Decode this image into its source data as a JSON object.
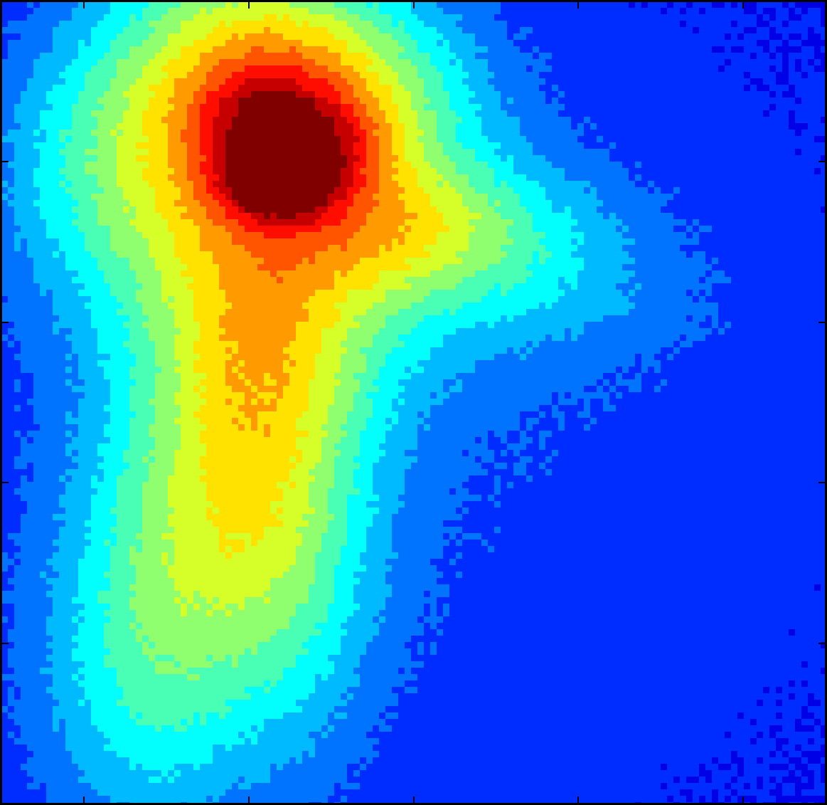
{
  "chart_data": {
    "type": "heatmap",
    "title": "",
    "xlabel": "",
    "ylabel": "",
    "colormap": "jet",
    "grid": false,
    "legend": "none",
    "xticks": [
      "",
      "",
      "",
      "",
      ""
    ],
    "yticks": [
      "",
      "",
      "",
      ""
    ],
    "blobs": [
      {
        "name": "core",
        "cx": 0.335,
        "cy": 0.225,
        "sx": 0.045,
        "sy": 0.03,
        "w": 0.45
      },
      {
        "name": "core-upper-left-arm",
        "cx": 0.315,
        "cy": 0.155,
        "sx": 0.05,
        "sy": 0.045,
        "w": 0.22
      },
      {
        "name": "core-upper-right-arm",
        "cx": 0.395,
        "cy": 0.175,
        "sx": 0.05,
        "sy": 0.04,
        "w": 0.18
      },
      {
        "name": "upper-plume",
        "cx": 0.3,
        "cy": 0.08,
        "sx": 0.12,
        "sy": 0.12,
        "w": 0.42
      },
      {
        "name": "central-halo",
        "cx": 0.33,
        "cy": 0.25,
        "sx": 0.16,
        "sy": 0.15,
        "w": 0.35
      },
      {
        "name": "right-lobe",
        "cx": 0.52,
        "cy": 0.28,
        "sx": 0.13,
        "sy": 0.06,
        "w": 0.26
      },
      {
        "name": "right-upper-lobe",
        "cx": 0.44,
        "cy": 0.12,
        "sx": 0.1,
        "sy": 0.08,
        "w": 0.18
      },
      {
        "name": "stem-upper",
        "cx": 0.31,
        "cy": 0.45,
        "sx": 0.1,
        "sy": 0.12,
        "w": 0.32
      },
      {
        "name": "stem-mid",
        "cx": 0.25,
        "cy": 0.65,
        "sx": 0.11,
        "sy": 0.13,
        "w": 0.3
      },
      {
        "name": "stem-lower",
        "cx": 0.18,
        "cy": 0.86,
        "sx": 0.1,
        "sy": 0.14,
        "w": 0.25
      },
      {
        "name": "stem-right",
        "cx": 0.36,
        "cy": 0.72,
        "sx": 0.07,
        "sy": 0.16,
        "w": 0.16
      },
      {
        "name": "left-wing",
        "cx": 0.12,
        "cy": 0.2,
        "sx": 0.1,
        "sy": 0.12,
        "w": 0.16
      },
      {
        "name": "arc-right",
        "cx": 0.66,
        "cy": 0.36,
        "sx": 0.14,
        "sy": 0.07,
        "w": 0.1
      },
      {
        "name": "background",
        "cx": 0.5,
        "cy": 0.5,
        "sx": 0.6,
        "sy": 0.6,
        "w": 0.14
      }
    ],
    "value_range": [
      0,
      1
    ],
    "contour_levels": 13
  }
}
